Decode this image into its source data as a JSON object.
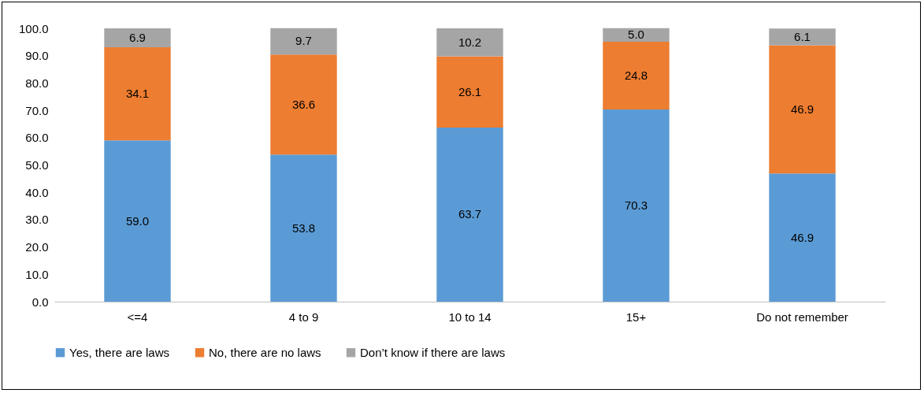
{
  "chart_data": {
    "type": "bar",
    "stacked": true,
    "categories": [
      "<=4",
      "4 to 9",
      "10 to 14",
      "15+",
      "Do not remember"
    ],
    "series": [
      {
        "name": "Yes, there are laws",
        "color": "#5b9bd5",
        "values": [
          59.0,
          53.8,
          63.7,
          70.3,
          46.9
        ],
        "value_labels": [
          "59.0",
          "53.8",
          "63.7",
          "70.3",
          "46.9"
        ]
      },
      {
        "name": "No, there are no laws",
        "color": "#ed7d31",
        "values": [
          34.1,
          36.6,
          26.1,
          24.8,
          46.9
        ],
        "value_labels": [
          "34.1",
          "36.6",
          "26.1",
          "24.8",
          "46.9"
        ]
      },
      {
        "name": "Don’t know if there are laws",
        "color": "#a5a5a5",
        "values": [
          6.9,
          9.7,
          10.2,
          5.0,
          6.1
        ],
        "value_labels": [
          "6.9",
          "9.7",
          "10.2",
          "5.0",
          "6.1"
        ]
      }
    ],
    "ylim": [
      0,
      100
    ],
    "yticks": [
      {
        "value": 0,
        "label": "0.0"
      },
      {
        "value": 10,
        "label": "10.0"
      },
      {
        "value": 20,
        "label": "20.0"
      },
      {
        "value": 30,
        "label": "30.0"
      },
      {
        "value": 40,
        "label": "40.0"
      },
      {
        "value": 50,
        "label": "50.0"
      },
      {
        "value": 60,
        "label": "60.0"
      },
      {
        "value": 70,
        "label": "70.0"
      },
      {
        "value": 80,
        "label": "80.0"
      },
      {
        "value": 90,
        "label": "90.0"
      },
      {
        "value": 100,
        "label": "100.0"
      }
    ],
    "grid": false,
    "legend": "bottom"
  }
}
